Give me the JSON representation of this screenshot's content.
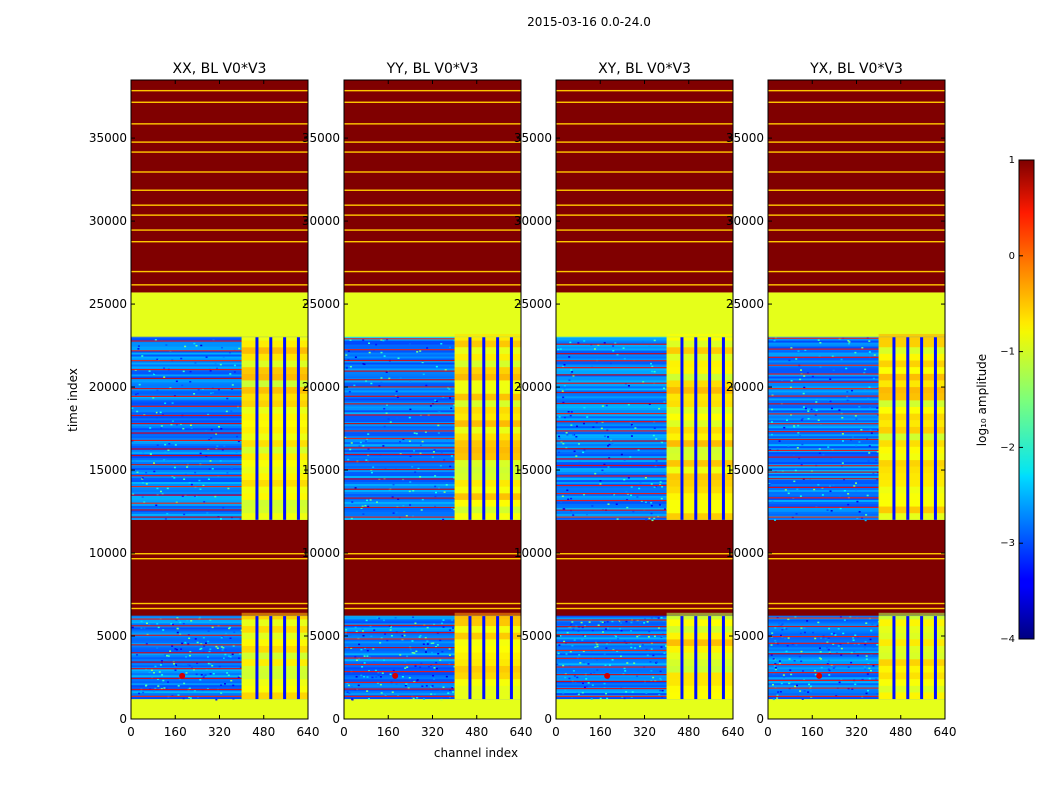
{
  "figure": {
    "suptitle": "2015-03-16 0.0-24.0"
  },
  "chart_data": {
    "type": "heatmap",
    "colormap": "jet",
    "xlabel": "channel index",
    "ylabel": "time index",
    "xlim": [
      0,
      640
    ],
    "ylim": [
      0,
      38500
    ],
    "xticks": [
      "0",
      "160",
      "320",
      "480",
      "640"
    ],
    "yticks": [
      "0",
      "5000",
      "10000",
      "15000",
      "20000",
      "25000",
      "30000",
      "35000"
    ],
    "colorbar": {
      "label": "log₁₀ amplitude",
      "range": [
        -4,
        1
      ],
      "ticks": [
        "−4",
        "−3",
        "−2",
        "−1",
        "0",
        "1"
      ]
    },
    "panels": [
      {
        "title": "XX, BL V0*V3",
        "band_start_channel": 400,
        "band_end_channel": 640,
        "band_split_channels": [
          450,
          500,
          550,
          600
        ]
      },
      {
        "title": "YY, BL V0*V3",
        "band_start_channel": 400,
        "band_end_channel": 640,
        "band_split_channels": [
          450,
          500,
          550,
          600
        ]
      },
      {
        "title": "XY, BL V0*V3",
        "band_start_channel": 400,
        "band_end_channel": 640,
        "band_split_channels": [
          450,
          500,
          550,
          600
        ]
      },
      {
        "title": "YX, BL V0*V3",
        "band_start_channel": 400,
        "band_end_channel": 640,
        "band_split_channels": [
          450,
          500,
          550,
          600
        ]
      }
    ],
    "regions_time": [
      {
        "from": 0,
        "to": 1200,
        "level": -1.0
      },
      {
        "from": 1200,
        "to": 6200,
        "level": -2.8
      },
      {
        "from": 6200,
        "to": 12000,
        "level": 1.0
      },
      {
        "from": 12000,
        "to": 23000,
        "level": -2.8
      },
      {
        "from": 23000,
        "to": 25700,
        "level": -1.0
      },
      {
        "from": 25700,
        "to": 38500,
        "level": 1.0
      }
    ],
    "flag_lines_time": [
      26200,
      27000,
      28800,
      29500,
      30400,
      31000,
      31900,
      33000,
      34200,
      34800,
      35900,
      37200,
      37900,
      6700,
      7000,
      9700,
      10000
    ],
    "rfi_peak": {
      "channel": 185,
      "time": 2600,
      "level": 0.6
    }
  }
}
